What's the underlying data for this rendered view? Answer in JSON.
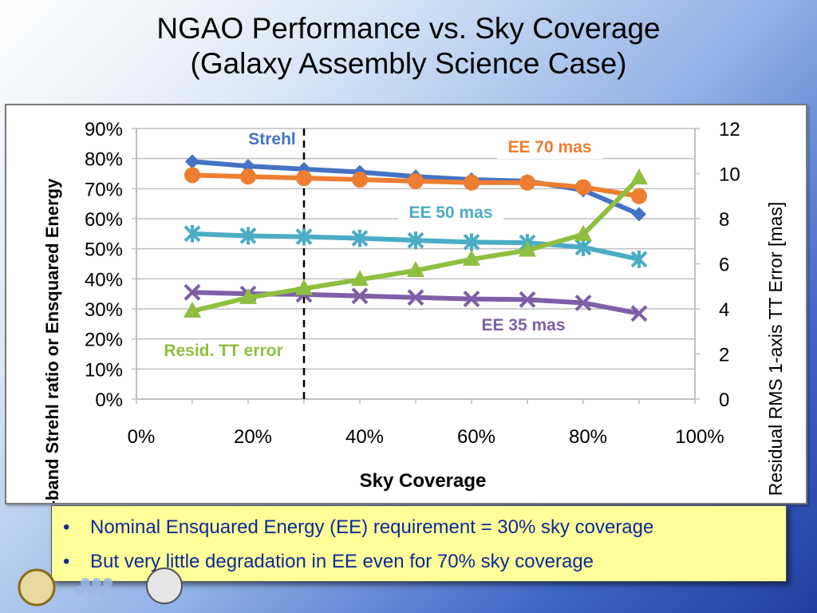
{
  "slide": {
    "title_line1": "NGAO Performance vs. Sky Coverage",
    "title_line2": "(Galaxy Assembly Science Case)"
  },
  "bullets": [
    "Nominal Ensquared Energy (EE) requirement = 30% sky coverage",
    "But very little degradation in EE even for 70% sky coverage"
  ],
  "colors": {
    "strehl": "#4472c4",
    "ee70": "#ed7d31",
    "ee50": "#4bacc6",
    "ee35": "#7f5fa8",
    "tt": "#8fbf40",
    "bullet_box": "#ffff99",
    "bullet_text": "#0c2a96"
  },
  "chart_data": {
    "type": "line",
    "xlabel": "Sky Coverage",
    "ylabel_left": "K-band Strehl ratio or Ensquared Energy",
    "ylabel_right": "Residual RMS 1-axis TT Error [mas]",
    "x_ticks": [
      "0%",
      "20%",
      "40%",
      "60%",
      "80%",
      "100%"
    ],
    "y_left_ticks": [
      "0%",
      "10%",
      "20%",
      "30%",
      "40%",
      "50%",
      "60%",
      "70%",
      "80%",
      "90%"
    ],
    "y_right_ticks": [
      "0",
      "2",
      "4",
      "6",
      "8",
      "10",
      "12"
    ],
    "xlim": [
      0,
      100
    ],
    "ylim_left": [
      0,
      90
    ],
    "ylim_right": [
      0,
      12
    ],
    "grid": true,
    "x": [
      10,
      20,
      30,
      40,
      50,
      60,
      70,
      80,
      90
    ],
    "reference_line_x": 30,
    "series": [
      {
        "name": "Strehl",
        "axis": "left",
        "marker": "diamond",
        "color": "#4472c4",
        "values": [
          79,
          77.5,
          76.5,
          75.5,
          74,
          73,
          72.5,
          69.5,
          61.5
        ]
      },
      {
        "name": "EE 70 mas",
        "axis": "left",
        "marker": "circle",
        "color": "#ed7d31",
        "values": [
          74.5,
          74,
          73.5,
          73,
          72.5,
          72,
          72,
          70.5,
          67.5
        ]
      },
      {
        "name": "EE 50 mas",
        "axis": "left",
        "marker": "star",
        "color": "#4bacc6",
        "values": [
          55,
          54.3,
          54,
          53.5,
          52.8,
          52.2,
          52,
          50.5,
          46.5
        ]
      },
      {
        "name": "EE 35 mas",
        "axis": "left",
        "marker": "x",
        "color": "#7f5fa8",
        "values": [
          35.5,
          35,
          34.8,
          34.3,
          33.8,
          33.3,
          33.1,
          32,
          28.5
        ]
      },
      {
        "name": "Resid. TT error",
        "axis": "right",
        "marker": "triangle",
        "color": "#8fbf40",
        "values": [
          3.9,
          4.5,
          4.9,
          5.3,
          5.7,
          6.2,
          6.6,
          7.3,
          9.8
        ]
      }
    ]
  }
}
